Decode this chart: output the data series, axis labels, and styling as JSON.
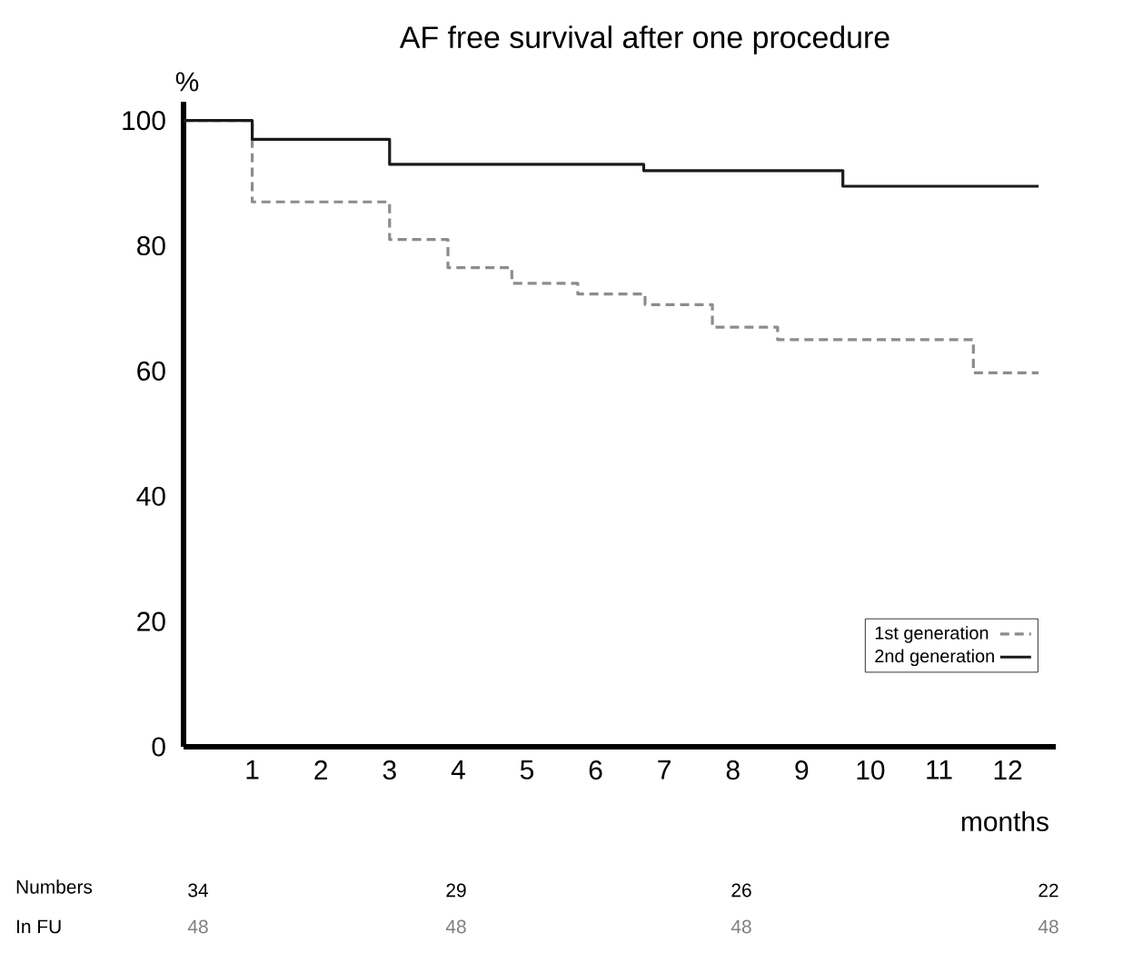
{
  "chart_data": {
    "type": "step",
    "title": "AF free survival after one procedure",
    "xlabel": "months",
    "ylabel": "%",
    "xlim": [
      0,
      12.7
    ],
    "ylim": [
      0,
      103
    ],
    "xticks": [
      1,
      2,
      3,
      4,
      5,
      6,
      7,
      8,
      9,
      10,
      11,
      12
    ],
    "yticks": [
      0,
      20,
      40,
      60,
      80,
      100
    ],
    "legend": "bottom right",
    "grid": false,
    "series": [
      {
        "name": "1st generation",
        "color": "#8c8c8c",
        "line_style": "dashed",
        "x": [
          0,
          1,
          3,
          3.85,
          4.78,
          5.74,
          6.72,
          7.7,
          8.65,
          11.5,
          12.45
        ],
        "values": [
          100,
          87,
          81,
          76.5,
          74,
          72.3,
          70.6,
          67,
          65,
          59.7,
          59.7
        ]
      },
      {
        "name": "2nd generation",
        "color": "#1a1a1a",
        "line_style": "solid",
        "x": [
          0,
          1,
          3,
          6.7,
          9.6,
          12.45
        ],
        "values": [
          100,
          97,
          93,
          92,
          89.5,
          89.5
        ]
      }
    ],
    "annotations": [
      "Numbers",
      "In FU",
      "34",
      "29",
      "26",
      "22",
      "48",
      "48",
      "48",
      "48"
    ]
  }
}
